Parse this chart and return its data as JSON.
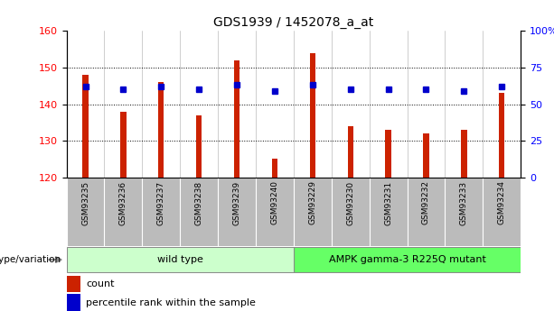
{
  "title": "GDS1939 / 1452078_a_at",
  "samples": [
    "GSM93235",
    "GSM93236",
    "GSM93237",
    "GSM93238",
    "GSM93239",
    "GSM93240",
    "GSM93229",
    "GSM93230",
    "GSM93231",
    "GSM93232",
    "GSM93233",
    "GSM93234"
  ],
  "count_values": [
    148,
    138,
    146,
    137,
    152,
    125,
    154,
    134,
    133,
    132,
    133,
    143
  ],
  "percentile_values": [
    62,
    60,
    62,
    60,
    63,
    59,
    63,
    60,
    60,
    60,
    59,
    62
  ],
  "ylim_left": [
    120,
    160
  ],
  "ylim_right": [
    0,
    100
  ],
  "yticks_left": [
    120,
    130,
    140,
    150,
    160
  ],
  "yticks_right": [
    0,
    25,
    50,
    75,
    100
  ],
  "yticklabels_right": [
    "0",
    "25",
    "50",
    "75",
    "100%"
  ],
  "bar_color": "#CC2200",
  "dot_color": "#0000CC",
  "group1_label": "wild type",
  "group1_color": "#CCFFCC",
  "group2_label": "AMPK gamma-3 R225Q mutant",
  "group2_color": "#66FF66",
  "group1_indices": [
    0,
    1,
    2,
    3,
    4,
    5
  ],
  "group2_indices": [
    6,
    7,
    8,
    9,
    10,
    11
  ],
  "genotype_label": "genotype/variation",
  "legend_count": "count",
  "legend_percentile": "percentile rank within the sample",
  "xtick_bg_color": "#BBBBBB",
  "bar_width": 0.15
}
